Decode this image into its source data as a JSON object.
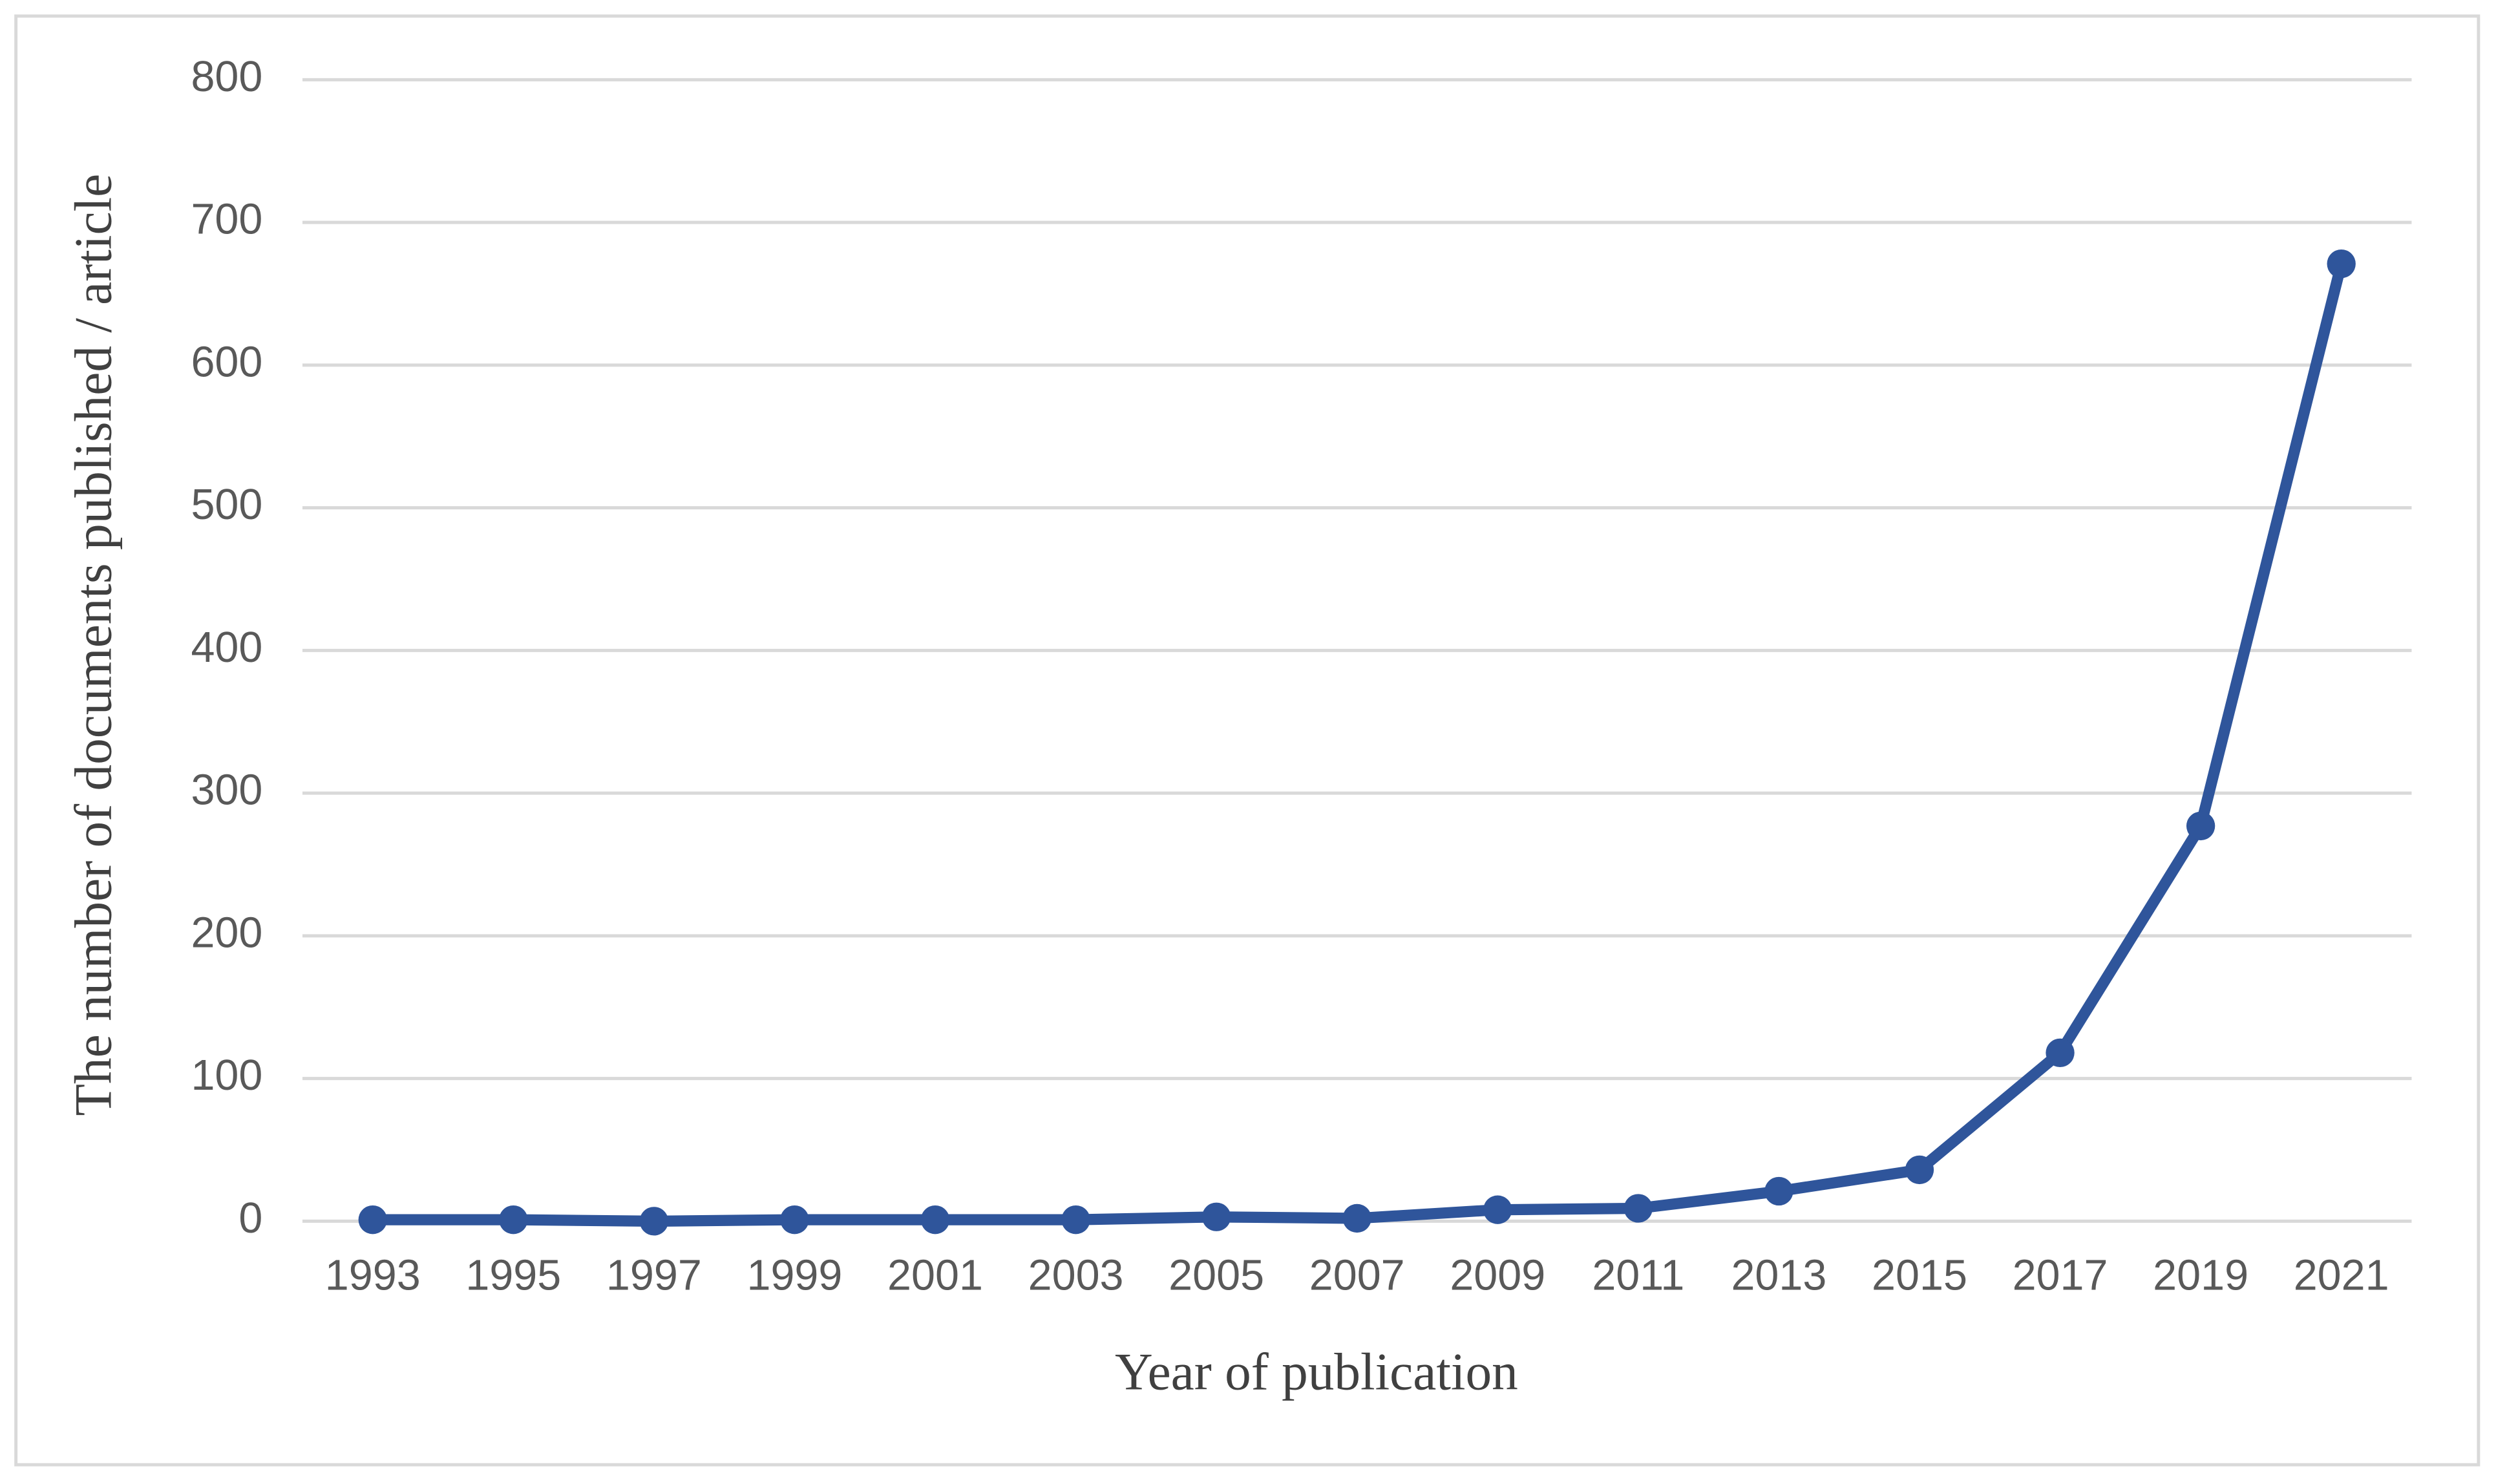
{
  "chart_data": {
    "type": "line",
    "x_label": "Year of publication",
    "y_label": "The number of documents published / article",
    "categories": [
      "1993",
      "1995",
      "1997",
      "1999",
      "2001",
      "2003",
      "2005",
      "2007",
      "2009",
      "2011",
      "2013",
      "2015",
      "2017",
      "2019",
      "2021"
    ],
    "values": [
      1,
      1,
      0,
      1,
      1,
      1,
      3,
      2,
      8,
      9,
      21,
      36,
      118,
      277,
      671
    ],
    "color": "#2f559b",
    "ylim": [
      0,
      800
    ],
    "yticks": [
      0,
      100,
      200,
      300,
      400,
      500,
      600,
      700,
      800
    ],
    "grid": true
  }
}
